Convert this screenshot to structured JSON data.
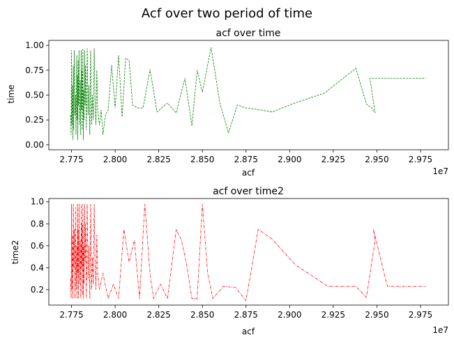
{
  "figure_title": "Acf over two period of time",
  "chart_data": [
    {
      "type": "line",
      "title": "acf over time",
      "xlabel": "acf",
      "ylabel": "time",
      "x_offset_label": "1e7",
      "xlim": [
        2.762,
        2.991
      ],
      "ylim": [
        -0.05,
        1.05
      ],
      "x_ticks": [
        2.775,
        2.8,
        2.825,
        2.85,
        2.875,
        2.9,
        2.925,
        2.95,
        2.975
      ],
      "x_tick_labels": [
        "2.775",
        "2.800",
        "2.825",
        "2.850",
        "2.875",
        "2.900",
        "2.925",
        "2.950",
        "2.975"
      ],
      "y_ticks": [
        0.0,
        0.25,
        0.5,
        0.75,
        1.0
      ],
      "y_tick_labels": [
        "0.00",
        "0.25",
        "0.50",
        "0.75",
        "1.00"
      ],
      "series": [
        {
          "color": "#008000",
          "style": "dashed",
          "x": [
            2.7745,
            2.7748,
            2.775,
            2.7752,
            2.7755,
            2.7758,
            2.776,
            2.7763,
            2.7766,
            2.777,
            2.7773,
            2.7776,
            2.778,
            2.7782,
            2.7784,
            2.7786,
            2.7788,
            2.779,
            2.7793,
            2.7796,
            2.78,
            2.7803,
            2.7806,
            2.7808,
            2.781,
            2.7812,
            2.7815,
            2.7818,
            2.782,
            2.7822,
            2.7825,
            2.7828,
            2.783,
            2.7835,
            2.784,
            2.7845,
            2.785,
            2.7855,
            2.786,
            2.7865,
            2.787,
            2.7875,
            2.788,
            2.7885,
            2.789,
            2.7895,
            2.79,
            2.791,
            2.792,
            2.793,
            2.7945,
            2.796,
            2.798,
            2.8,
            2.802,
            2.804,
            2.806,
            2.808,
            2.81,
            2.813,
            2.816,
            2.82,
            2.824,
            2.83,
            2.835,
            2.84,
            2.844,
            2.847,
            2.85,
            2.855,
            2.86,
            2.865,
            2.87,
            2.875,
            2.88,
            2.89,
            2.903,
            2.92,
            2.938,
            2.944,
            2.947,
            2.949,
            2.946,
            2.948,
            2.956,
            2.978
          ],
          "y": [
            0.3,
            0.1,
            0.95,
            0.2,
            0.6,
            0.05,
            0.8,
            0.15,
            0.95,
            0.3,
            0.5,
            0.1,
            0.9,
            0.25,
            0.7,
            0.05,
            0.85,
            0.4,
            0.95,
            0.2,
            0.65,
            0.1,
            0.95,
            0.35,
            0.75,
            0.15,
            0.97,
            0.05,
            0.55,
            0.25,
            0.95,
            0.4,
            0.8,
            0.15,
            0.97,
            0.3,
            0.6,
            0.1,
            0.95,
            0.2,
            0.5,
            0.25,
            0.97,
            0.45,
            0.2,
            0.75,
            0.35,
            0.2,
            0.35,
            0.1,
            0.3,
            0.35,
            0.8,
            0.37,
            0.9,
            0.28,
            0.87,
            0.85,
            0.4,
            0.37,
            0.37,
            0.76,
            0.33,
            0.42,
            0.32,
            0.67,
            0.19,
            0.75,
            0.53,
            0.98,
            0.42,
            0.12,
            0.4,
            0.37,
            0.36,
            0.33,
            0.42,
            0.52,
            0.77,
            0.41,
            0.37,
            0.32,
            0.67,
            0.67,
            0.67,
            0.67
          ]
        }
      ]
    },
    {
      "type": "line",
      "title": "acf over time2",
      "xlabel": "acf",
      "ylabel": "time2",
      "x_offset_label": "1e7",
      "xlim": [
        2.762,
        2.991
      ],
      "ylim": [
        0.06,
        1.03
      ],
      "x_ticks": [
        2.775,
        2.8,
        2.825,
        2.85,
        2.875,
        2.9,
        2.925,
        2.95,
        2.975
      ],
      "x_tick_labels": [
        "2.775",
        "2.800",
        "2.825",
        "2.850",
        "2.875",
        "2.900",
        "2.925",
        "2.950",
        "2.975"
      ],
      "y_ticks": [
        0.2,
        0.4,
        0.6,
        0.8,
        1.0
      ],
      "y_tick_labels": [
        "0.2",
        "0.4",
        "0.6",
        "0.8",
        "1.0"
      ],
      "series": [
        {
          "color": "#ff0000",
          "style": "dashdot",
          "x": [
            2.7745,
            2.7748,
            2.775,
            2.7752,
            2.7755,
            2.7758,
            2.776,
            2.7763,
            2.7766,
            2.777,
            2.7773,
            2.7776,
            2.778,
            2.7782,
            2.7784,
            2.7786,
            2.7788,
            2.779,
            2.7793,
            2.7796,
            2.78,
            2.7803,
            2.7806,
            2.7808,
            2.781,
            2.7812,
            2.7815,
            2.7818,
            2.782,
            2.7822,
            2.7825,
            2.7828,
            2.783,
            2.7835,
            2.784,
            2.7845,
            2.785,
            2.7855,
            2.786,
            2.7865,
            2.787,
            2.7875,
            2.788,
            2.7885,
            2.789,
            2.7895,
            2.79,
            2.791,
            2.793,
            2.796,
            2.799,
            2.802,
            2.805,
            2.808,
            2.811,
            2.814,
            2.817,
            2.82,
            2.822,
            2.826,
            2.83,
            2.835,
            2.838,
            2.841,
            2.844,
            2.847,
            2.85,
            2.853,
            2.856,
            2.862,
            2.869,
            2.875,
            2.882,
            2.89,
            2.903,
            2.922,
            2.938,
            2.944,
            2.949,
            2.948,
            2.956,
            2.978
          ],
          "y": [
            0.3,
            0.12,
            0.98,
            0.2,
            0.7,
            0.12,
            0.98,
            0.4,
            0.75,
            0.12,
            0.95,
            0.2,
            0.6,
            0.12,
            0.98,
            0.35,
            0.75,
            0.12,
            0.98,
            0.25,
            0.65,
            0.12,
            0.98,
            0.4,
            0.8,
            0.15,
            0.98,
            0.12,
            0.6,
            0.25,
            0.98,
            0.45,
            0.8,
            0.12,
            0.98,
            0.3,
            0.6,
            0.12,
            0.98,
            0.2,
            0.5,
            0.25,
            0.98,
            0.45,
            0.2,
            0.7,
            0.35,
            0.2,
            0.35,
            0.12,
            0.25,
            0.12,
            0.75,
            0.45,
            0.65,
            0.12,
            0.98,
            0.35,
            0.12,
            0.25,
            0.12,
            0.75,
            0.65,
            0.43,
            0.12,
            0.12,
            0.98,
            0.35,
            0.12,
            0.23,
            0.22,
            0.1,
            0.75,
            0.66,
            0.43,
            0.23,
            0.23,
            0.13,
            0.65,
            0.75,
            0.23,
            0.23
          ]
        }
      ]
    }
  ]
}
